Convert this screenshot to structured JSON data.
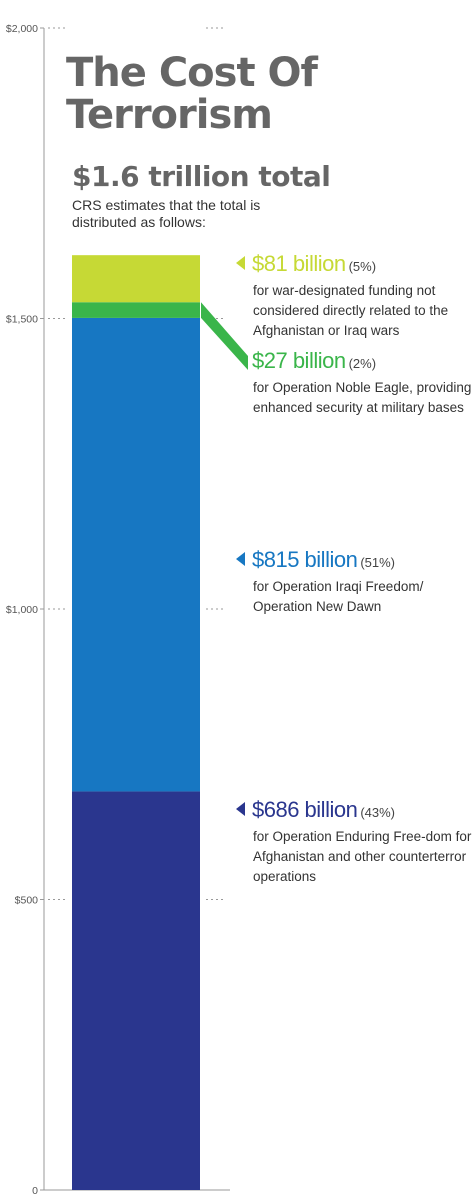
{
  "title": "The Cost Of Terrorism",
  "total_label": "$1.6 trillion total",
  "subtitle": "CRS estimates that the total is distributed as follows:",
  "chart_data": {
    "type": "bar",
    "stacked": true,
    "ylim": [
      0,
      2000
    ],
    "y_ticks": [
      0,
      500,
      1000,
      1500,
      2000
    ],
    "y_tick_labels": [
      "0",
      "$500",
      "$1,000",
      "$1,500",
      "$2,000"
    ],
    "grid": false,
    "series": [
      {
        "amount": "$686 billion",
        "pct": "(43%)",
        "value": 686,
        "color": "#2a368e",
        "desc": "for Operation Enduring Free-dom for Afghanistan and other counterterror operations"
      },
      {
        "amount": "$815 billion",
        "pct": "(51%)",
        "value": 815,
        "color": "#1777c2",
        "desc": "for Operation Iraqi Freedom/ Operation New Dawn"
      },
      {
        "amount": "$27 billion",
        "pct": "(2%)",
        "value": 27,
        "color": "#3ab54a",
        "desc": "for Operation Noble Eagle, providing enhanced security at military bases"
      },
      {
        "amount": "$81 billion",
        "pct": "(5%)",
        "value": 81,
        "color": "#c6d935",
        "desc": "for war-designated funding not considered directly related to the Afghanistan or Iraq wars"
      }
    ]
  }
}
